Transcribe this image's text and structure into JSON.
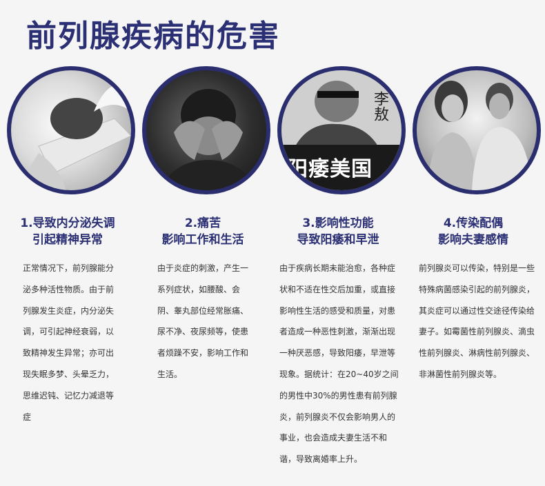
{
  "title": "前列腺疾病的危害",
  "images": {
    "book_cover_text": "阳痿美国",
    "book_author_text": "李敖"
  },
  "columns": [
    {
      "heading_line1": "1.导致内分泌失调",
      "heading_line2": "引起精神异常",
      "body": "正常情况下，前列腺能分泌多种活性物质。由于前列腺发生炎症，内分泌失调，可引起神经衰弱，以致精神发生异常；亦可出现失眠多梦、头晕乏力，思维迟钝、记忆力减退等症"
    },
    {
      "heading_line1": "2.痛苦",
      "heading_line2": "影响工作和生活",
      "body": "由于炎症的刺激，产生一系列症状，如腰酸、会阴、睾丸部位经常胀痛、尿不净、夜尿频等，使患者烦躁不安，影响工作和生活。"
    },
    {
      "heading_line1": "3.影响性功能",
      "heading_line2": "导致阳痿和早泄",
      "body": "由于疾病长期未能治愈，各种症状和不适在性交后加重，或直接影响性生活的感受和质量，对患者造成一种恶性刺激，渐渐出现一种厌恶感，导致阳痿，早泄等现象。据统计：在20~40岁之间的男性中30%的男性患有前列腺炎，前列腺炎不仅会影响男人的事业，也会造成夫妻生活不和谐，导致离婚率上升。"
    },
    {
      "heading_line1": "4.传染配偶",
      "heading_line2": "影响夫妻感情",
      "body": "前列腺炎可以传染，特别是一些特殊病菌感染引起的前列腺炎，其炎症可以通过性交途径传染给妻子。如霉菌性前列腺炎、滴虫性前列腺炎、淋病性前列腺炎、非淋菌性前列腺炎等。"
    }
  ],
  "colors": {
    "title": "#2b2f73",
    "circle_border": "#2a2d6e",
    "background": "#f5f5f6"
  }
}
